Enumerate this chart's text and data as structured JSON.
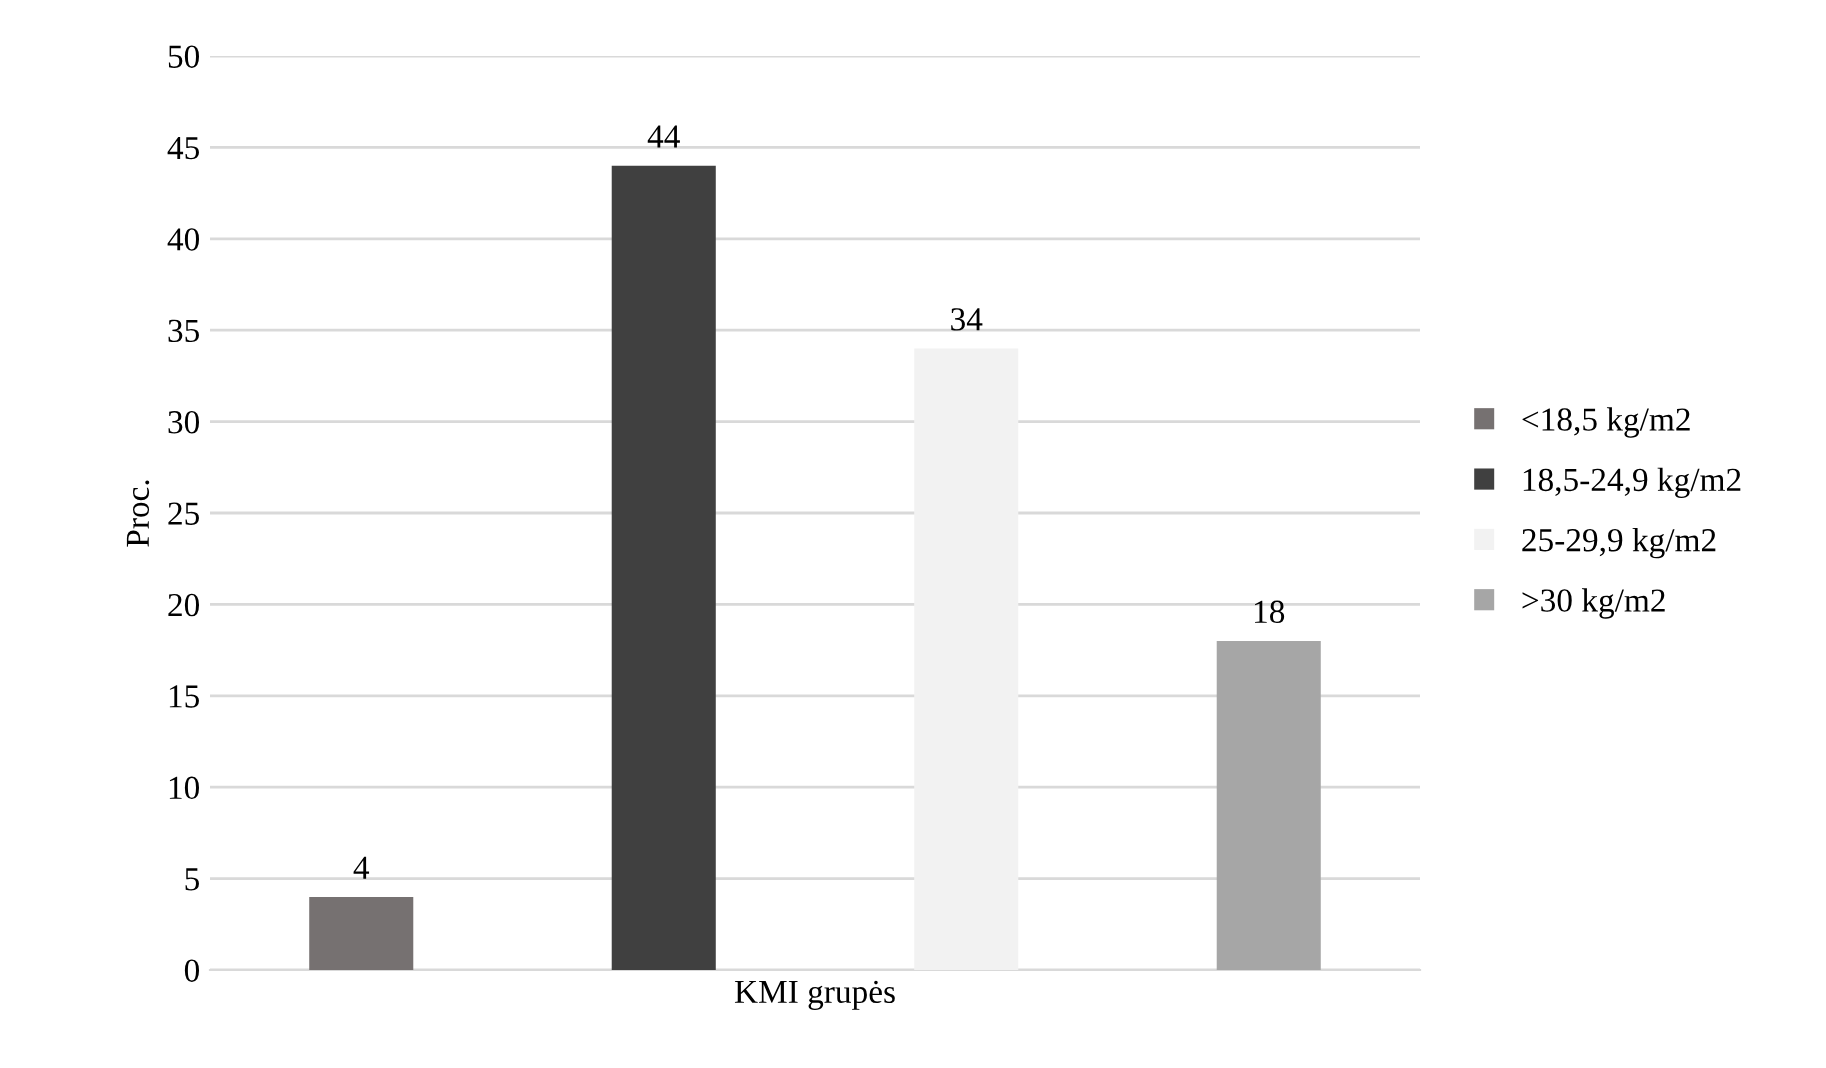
{
  "chart_data": {
    "type": "bar",
    "ylabel": "Proc.",
    "categories": [
      "KMI grupės"
    ],
    "series": [
      {
        "name": "<18,5 kg/m2",
        "color": "#767171",
        "values": [
          4
        ]
      },
      {
        "name": "18,5-24,9 kg/m2",
        "color": "#404040",
        "values": [
          44
        ]
      },
      {
        "name": "25-29,9 kg/m2",
        "color": "#f2f2f2",
        "values": [
          34
        ]
      },
      {
        "name": ">30 kg/m2",
        "color": "#a6a6a6",
        "values": [
          18
        ]
      }
    ],
    "ylim": [
      0,
      50
    ],
    "yticks": [
      0,
      5,
      10,
      15,
      20,
      25,
      30,
      35,
      40,
      45,
      50
    ],
    "grid": "y",
    "legend": "right",
    "data_labels": true
  }
}
